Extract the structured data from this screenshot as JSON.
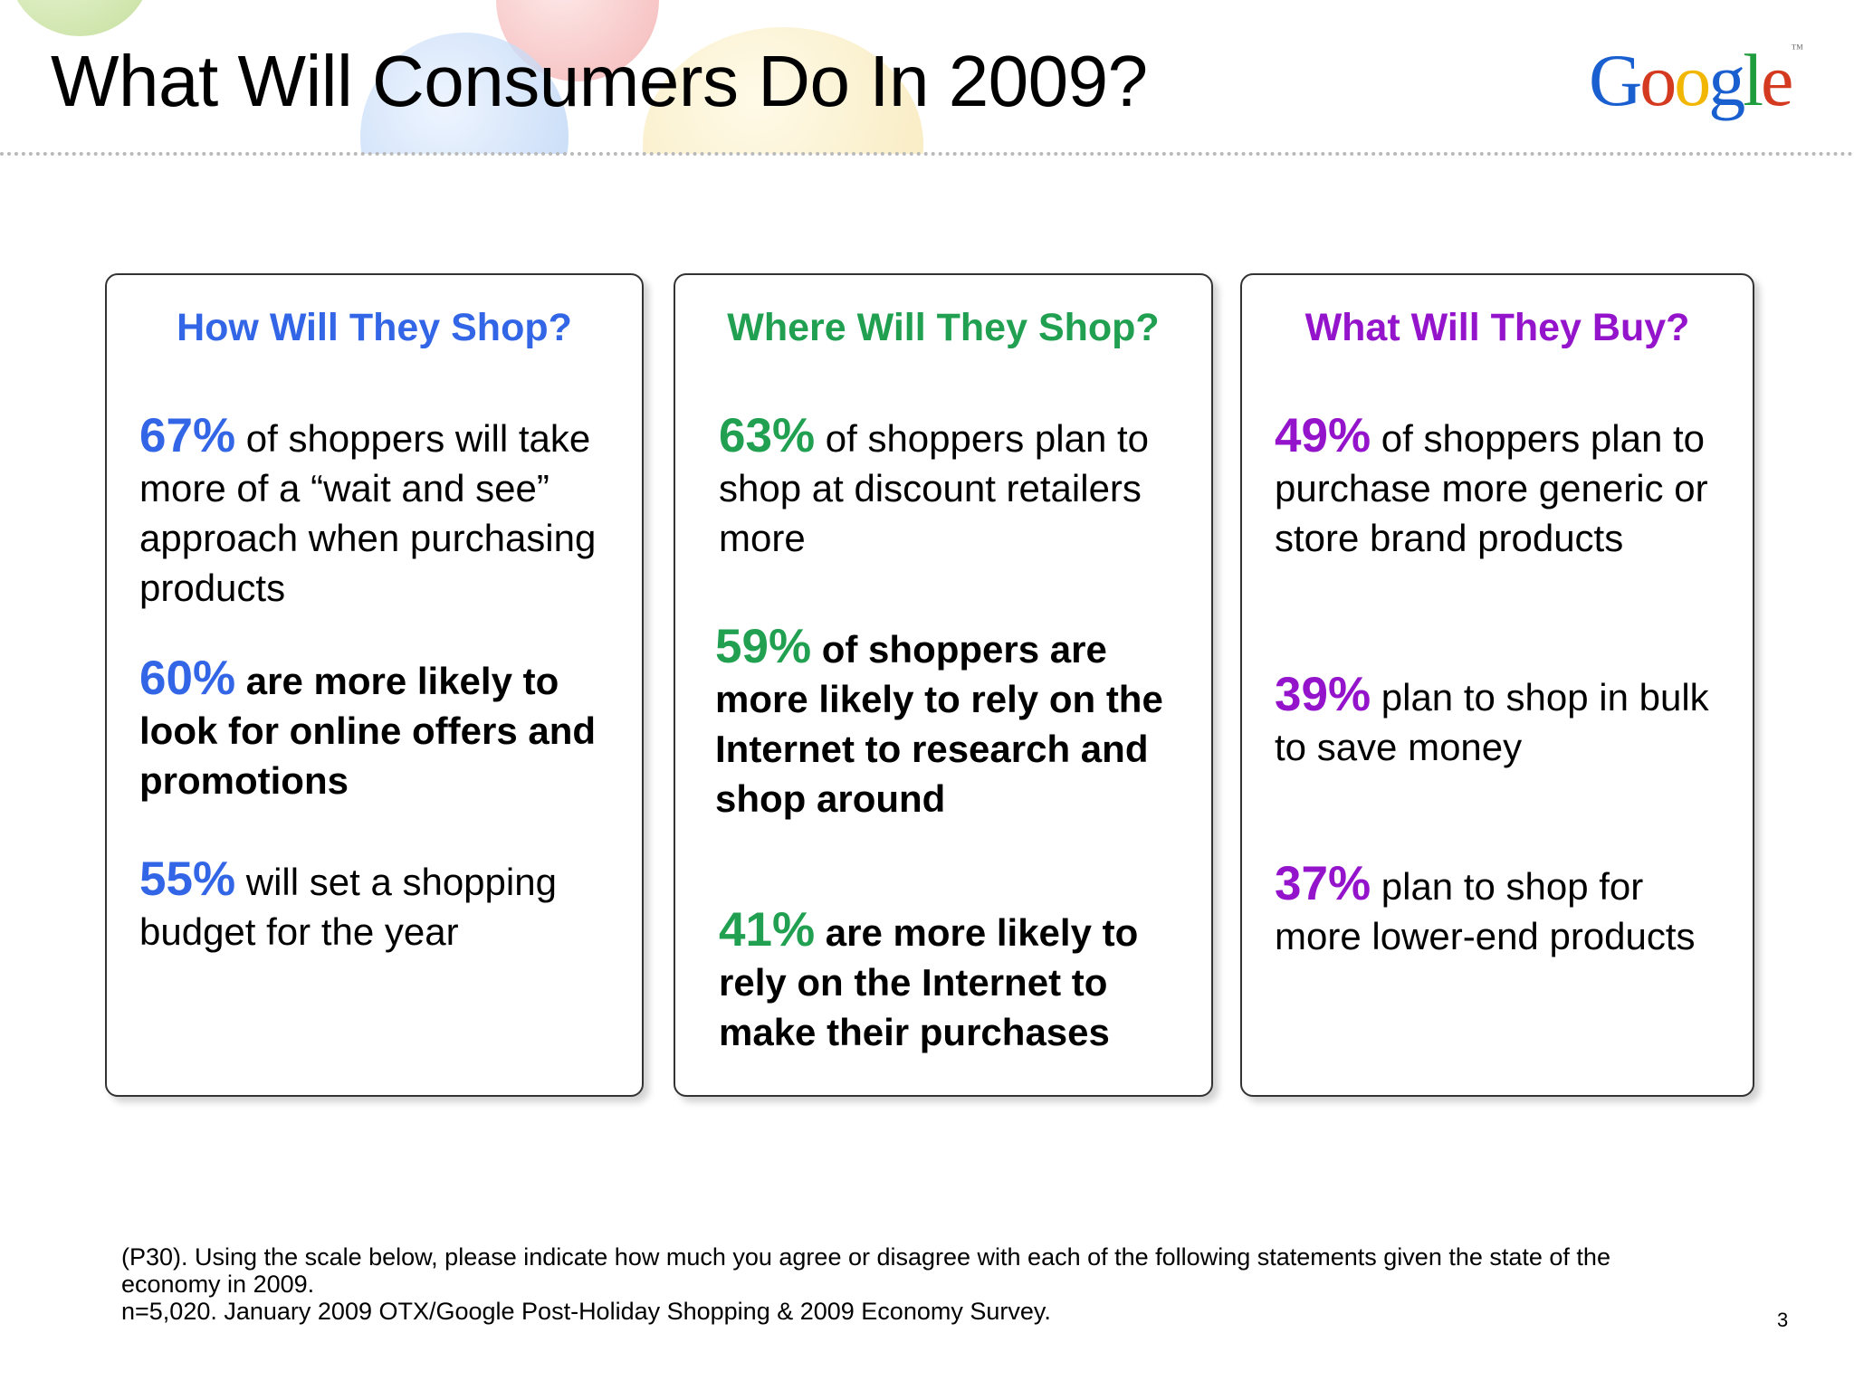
{
  "title": "What Will Consumers Do In 2009?",
  "logo": {
    "letters": [
      "G",
      "o",
      "o",
      "g",
      "l",
      "e"
    ],
    "colors": [
      "#1a5fd0",
      "#d43a1f",
      "#f2b705",
      "#1a5fd0",
      "#1e9d3e",
      "#d43a1f"
    ],
    "trademark": "™"
  },
  "cards": [
    {
      "heading": "How Will They Shop?",
      "accent": "#3366e6",
      "stats": [
        {
          "pct": "67%",
          "text": "of shoppers will take more of a “wait and see” approach when purchasing products"
        },
        {
          "pct": "60%",
          "text": "are more likely to look for online offers and promotions"
        },
        {
          "pct": "55%",
          "text": "will set a shopping budget for the year"
        }
      ]
    },
    {
      "heading": "Where Will They Shop?",
      "accent": "#20a050",
      "stats": [
        {
          "pct": "63%",
          "text": "of shoppers plan to shop at discount retailers more"
        },
        {
          "pct": "59%",
          "text": "of shoppers are more likely to rely on the Internet to research and shop around"
        },
        {
          "pct": "41%",
          "text": "are more likely to rely on the Internet to make their purchases"
        }
      ]
    },
    {
      "heading": "What Will They Buy?",
      "accent": "#9414cc",
      "stats": [
        {
          "pct": "49%",
          "text": "of shoppers plan to purchase more generic or store brand products"
        },
        {
          "pct": "39%",
          "text": "plan to shop in bulk to save money"
        },
        {
          "pct": "37%",
          "text": "plan to shop for more lower-end products"
        }
      ]
    }
  ],
  "footnote": {
    "question": "(P30). Using the scale below, please indicate how much you agree or disagree with each of the following statements given the state of the economy in 2009.",
    "source": "n=5,020. January 2009 OTX/Google Post-Holiday Shopping & 2009 Economy Survey."
  },
  "page_number": "3"
}
